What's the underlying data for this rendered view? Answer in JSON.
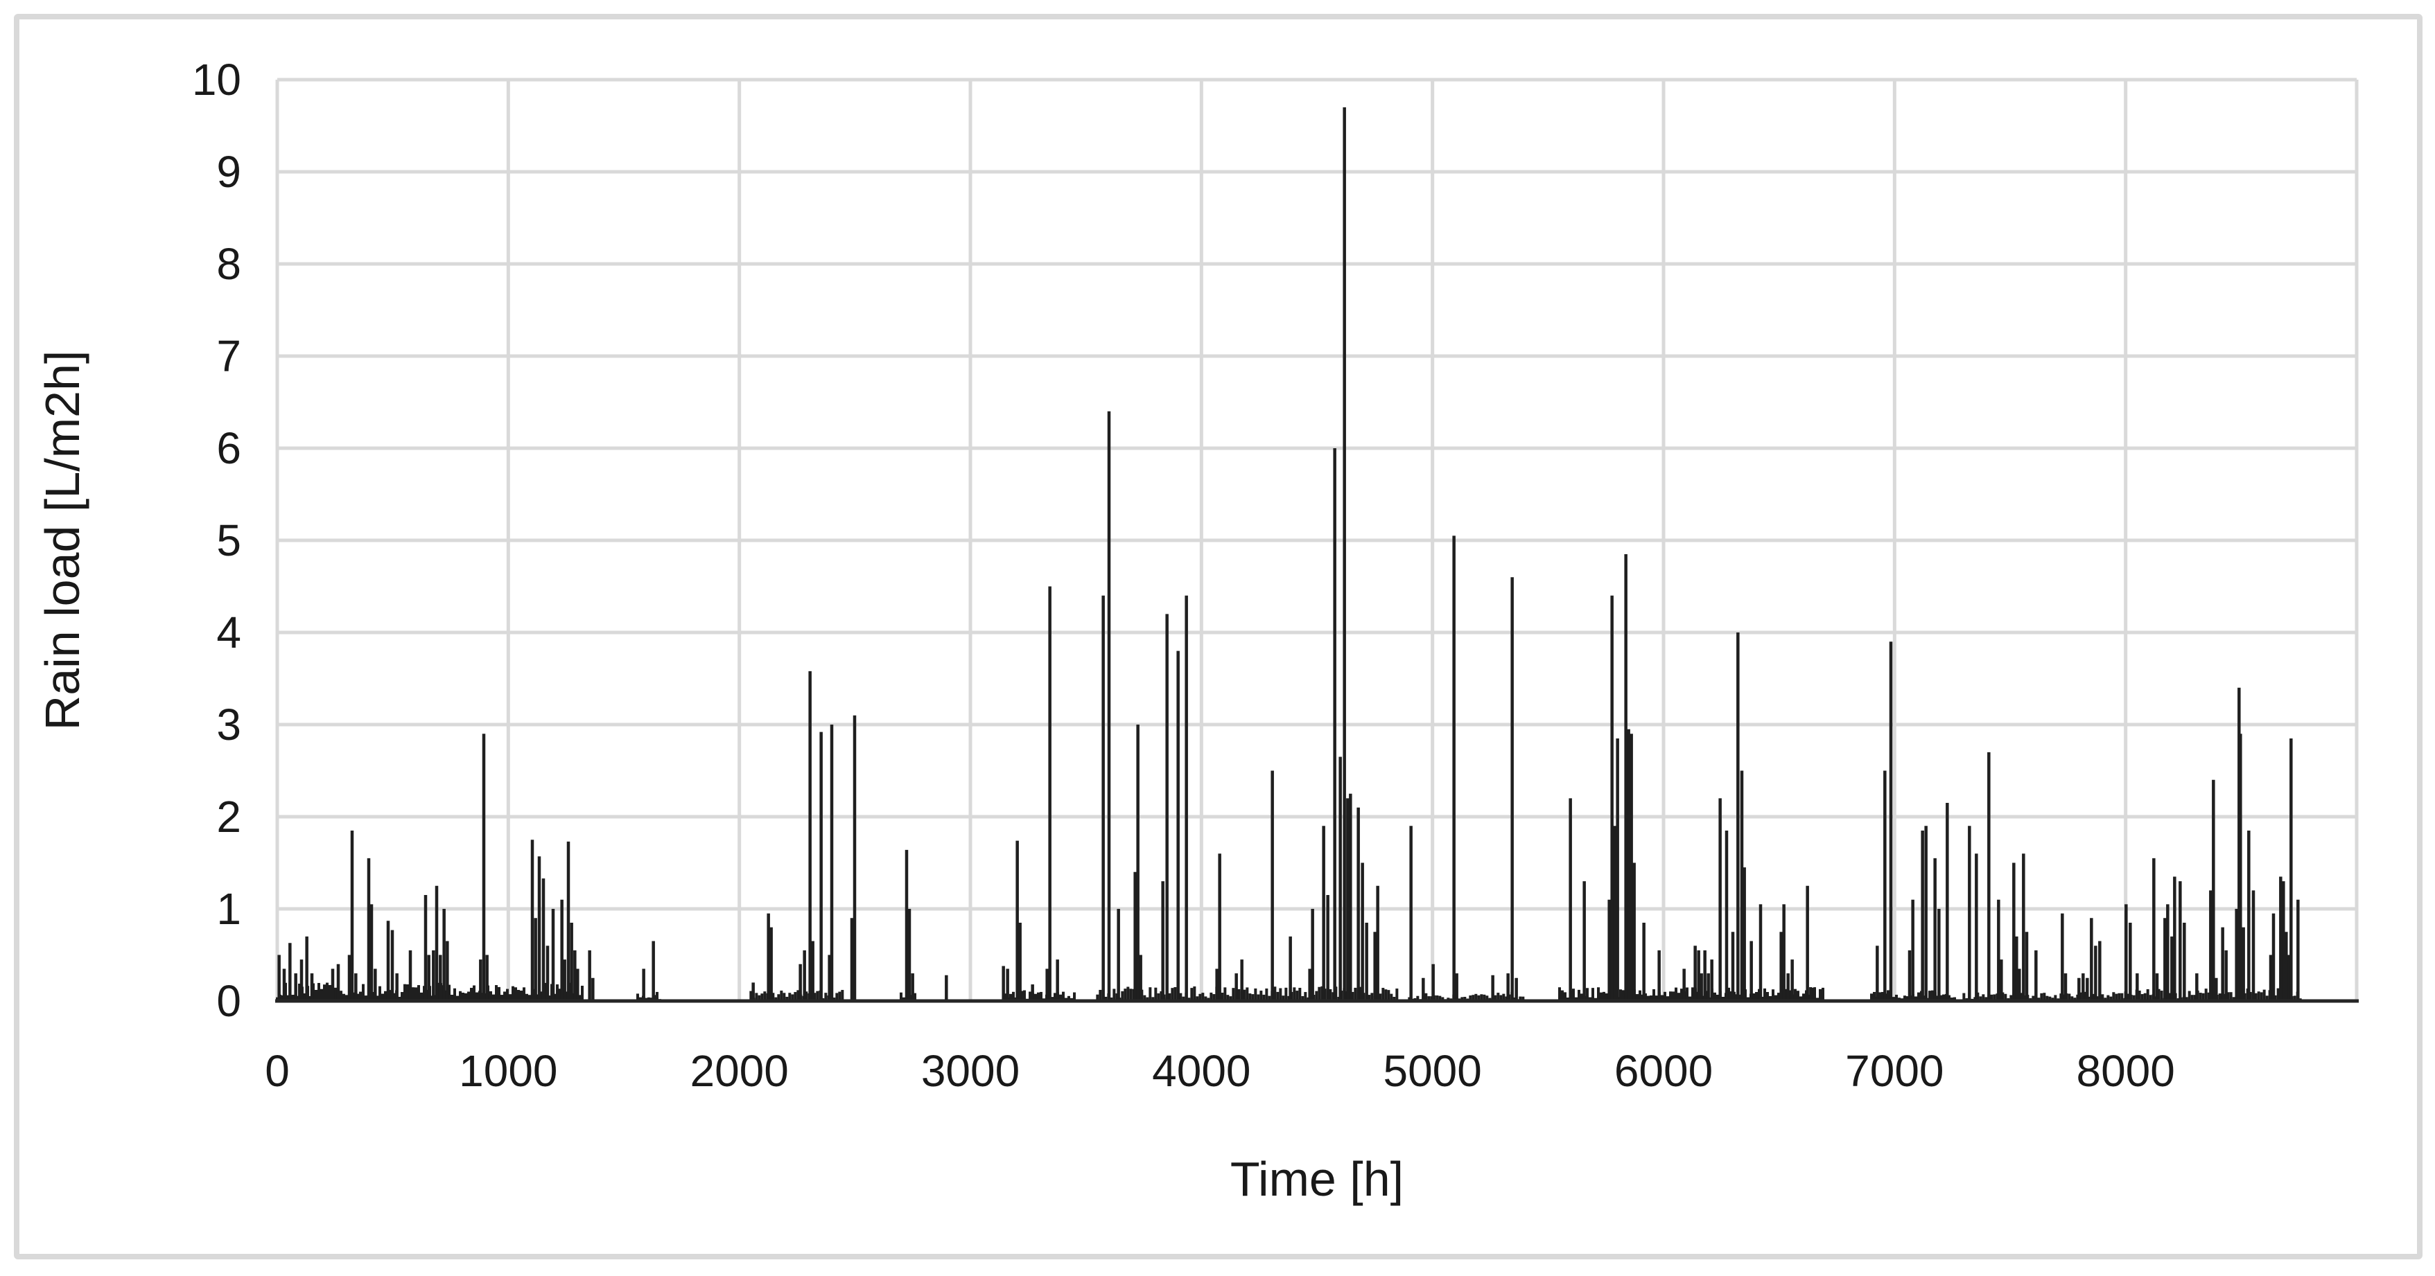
{
  "chart_data": {
    "type": "line",
    "subtype": "hourly-spike-series",
    "title": "",
    "xlabel": "Time [h]",
    "ylabel": "Rain load [L/m2h]",
    "xlim": [
      0,
      9000
    ],
    "ylim": [
      0,
      10
    ],
    "x_ticks": [
      0,
      1000,
      2000,
      3000,
      4000,
      5000,
      6000,
      7000,
      8000
    ],
    "y_ticks": [
      0,
      1,
      2,
      3,
      4,
      5,
      6,
      7,
      8,
      9,
      10
    ],
    "grid": "both",
    "legend": "none",
    "series_name": "Rain load",
    "points": [
      [
        8,
        0.5
      ],
      [
        30,
        0.35
      ],
      [
        55,
        0.63
      ],
      [
        80,
        0.3
      ],
      [
        105,
        0.45
      ],
      [
        128,
        0.7
      ],
      [
        150,
        0.3
      ],
      [
        240,
        0.35
      ],
      [
        264,
        0.4
      ],
      [
        312,
        0.5
      ],
      [
        324,
        1.85
      ],
      [
        340,
        0.3
      ],
      [
        396,
        1.55
      ],
      [
        408,
        1.05
      ],
      [
        424,
        0.35
      ],
      [
        480,
        0.87
      ],
      [
        498,
        0.77
      ],
      [
        518,
        0.3
      ],
      [
        576,
        0.55
      ],
      [
        642,
        1.15
      ],
      [
        656,
        0.5
      ],
      [
        676,
        0.55
      ],
      [
        690,
        1.25
      ],
      [
        706,
        0.5
      ],
      [
        722,
        1.0
      ],
      [
        736,
        0.65
      ],
      [
        880,
        0.45
      ],
      [
        894,
        2.9
      ],
      [
        908,
        0.5
      ],
      [
        1104,
        1.75
      ],
      [
        1118,
        0.9
      ],
      [
        1134,
        1.57
      ],
      [
        1152,
        1.33
      ],
      [
        1170,
        0.6
      ],
      [
        1194,
        1.0
      ],
      [
        1232,
        1.1
      ],
      [
        1244,
        0.45
      ],
      [
        1260,
        1.73
      ],
      [
        1274,
        0.85
      ],
      [
        1288,
        0.55
      ],
      [
        1300,
        0.35
      ],
      [
        1352,
        0.55
      ],
      [
        1366,
        0.25
      ],
      [
        1586,
        0.35
      ],
      [
        1628,
        0.65
      ],
      [
        2060,
        0.2
      ],
      [
        2126,
        0.95
      ],
      [
        2138,
        0.8
      ],
      [
        2264,
        0.4
      ],
      [
        2282,
        0.55
      ],
      [
        2306,
        3.58
      ],
      [
        2318,
        0.65
      ],
      [
        2354,
        2.92
      ],
      [
        2390,
        0.5
      ],
      [
        2400,
        3.0
      ],
      [
        2487,
        0.9
      ],
      [
        2499,
        3.1
      ],
      [
        2724,
        1.64
      ],
      [
        2736,
        1.0
      ],
      [
        2750,
        0.3
      ],
      [
        2896,
        0.28
      ],
      [
        3143,
        0.38
      ],
      [
        3161,
        0.35
      ],
      [
        3203,
        1.74
      ],
      [
        3215,
        0.85
      ],
      [
        3269,
        0.18
      ],
      [
        3332,
        0.35
      ],
      [
        3344,
        4.5
      ],
      [
        3377,
        0.45
      ],
      [
        3575,
        4.4
      ],
      [
        3600,
        6.4
      ],
      [
        3641,
        1.0
      ],
      [
        3713,
        1.4
      ],
      [
        3725,
        3.0
      ],
      [
        3737,
        0.5
      ],
      [
        3833,
        1.3
      ],
      [
        3851,
        4.2
      ],
      [
        3899,
        3.8
      ],
      [
        3935,
        4.4
      ],
      [
        4067,
        0.35
      ],
      [
        4079,
        1.6
      ],
      [
        4151,
        0.3
      ],
      [
        4175,
        0.45
      ],
      [
        4307,
        2.5
      ],
      [
        4385,
        0.7
      ],
      [
        4469,
        0.35
      ],
      [
        4481,
        1.0
      ],
      [
        4529,
        1.9
      ],
      [
        4547,
        1.15
      ],
      [
        4577,
        6.0
      ],
      [
        4601,
        2.65
      ],
      [
        4619,
        9.7
      ],
      [
        4633,
        2.2
      ],
      [
        4645,
        2.25
      ],
      [
        4679,
        2.1
      ],
      [
        4697,
        1.5
      ],
      [
        4715,
        0.85
      ],
      [
        4751,
        0.75
      ],
      [
        4763,
        1.25
      ],
      [
        4907,
        1.9
      ],
      [
        4960,
        0.25
      ],
      [
        5003,
        0.4
      ],
      [
        5093,
        5.05
      ],
      [
        5105,
        0.3
      ],
      [
        5261,
        0.28
      ],
      [
        5327,
        0.3
      ],
      [
        5345,
        4.6
      ],
      [
        5363,
        0.25
      ],
      [
        5597,
        2.2
      ],
      [
        5657,
        1.3
      ],
      [
        5765,
        1.1
      ],
      [
        5777,
        4.4
      ],
      [
        5789,
        1.9
      ],
      [
        5801,
        2.85
      ],
      [
        5837,
        4.85
      ],
      [
        5849,
        2.95
      ],
      [
        5861,
        2.9
      ],
      [
        5873,
        1.5
      ],
      [
        5915,
        0.85
      ],
      [
        5981,
        0.55
      ],
      [
        6089,
        0.35
      ],
      [
        6137,
        0.6
      ],
      [
        6152,
        0.55
      ],
      [
        6164,
        0.3
      ],
      [
        6179,
        0.55
      ],
      [
        6194,
        0.3
      ],
      [
        6209,
        0.45
      ],
      [
        6245,
        2.2
      ],
      [
        6273,
        1.85
      ],
      [
        6300,
        0.75
      ],
      [
        6322,
        4.0
      ],
      [
        6339,
        2.5
      ],
      [
        6350,
        1.45
      ],
      [
        6380,
        0.65
      ],
      [
        6420,
        1.05
      ],
      [
        6509,
        0.75
      ],
      [
        6521,
        1.05
      ],
      [
        6539,
        0.3
      ],
      [
        6557,
        0.45
      ],
      [
        6623,
        1.25
      ],
      [
        6637,
        0.15
      ],
      [
        6925,
        0.6
      ],
      [
        6958,
        2.5
      ],
      [
        6984,
        3.9
      ],
      [
        7065,
        0.55
      ],
      [
        7079,
        1.1
      ],
      [
        7121,
        1.85
      ],
      [
        7136,
        1.9
      ],
      [
        7175,
        1.55
      ],
      [
        7192,
        1.0
      ],
      [
        7228,
        2.15
      ],
      [
        7324,
        1.9
      ],
      [
        7354,
        1.6
      ],
      [
        7408,
        2.7
      ],
      [
        7450,
        1.1
      ],
      [
        7462,
        0.45
      ],
      [
        7516,
        1.5
      ],
      [
        7528,
        0.7
      ],
      [
        7540,
        0.35
      ],
      [
        7558,
        1.6
      ],
      [
        7572,
        0.75
      ],
      [
        7612,
        0.55
      ],
      [
        7726,
        0.95
      ],
      [
        7740,
        0.3
      ],
      [
        7798,
        0.25
      ],
      [
        7816,
        0.3
      ],
      [
        7834,
        0.25
      ],
      [
        7852,
        0.9
      ],
      [
        7870,
        0.6
      ],
      [
        7888,
        0.65
      ],
      [
        8002,
        1.05
      ],
      [
        8020,
        0.85
      ],
      [
        8050,
        0.3
      ],
      [
        8122,
        1.55
      ],
      [
        8136,
        0.3
      ],
      [
        8170,
        0.9
      ],
      [
        8182,
        1.05
      ],
      [
        8200,
        0.7
      ],
      [
        8212,
        1.35
      ],
      [
        8236,
        1.3
      ],
      [
        8254,
        0.85
      ],
      [
        8308,
        0.3
      ],
      [
        8368,
        1.2
      ],
      [
        8380,
        2.4
      ],
      [
        8392,
        0.25
      ],
      [
        8420,
        0.8
      ],
      [
        8435,
        0.55
      ],
      [
        8480,
        1.0
      ],
      [
        8491,
        3.4
      ],
      [
        8497,
        2.9
      ],
      [
        8510,
        0.8
      ],
      [
        8533,
        1.85
      ],
      [
        8553,
        1.2
      ],
      [
        8628,
        0.5
      ],
      [
        8640,
        0.95
      ],
      [
        8671,
        1.35
      ],
      [
        8683,
        1.3
      ],
      [
        8695,
        0.75
      ],
      [
        8707,
        0.5
      ],
      [
        8716,
        2.85
      ],
      [
        8746,
        1.1
      ]
    ],
    "baseline_noise_regions": [
      {
        "from": 0,
        "to": 1320,
        "amp": 0.2
      },
      {
        "from": 1560,
        "to": 1660,
        "amp": 0.1
      },
      {
        "from": 2050,
        "to": 2450,
        "amp": 0.12
      },
      {
        "from": 2700,
        "to": 2760,
        "amp": 0.1
      },
      {
        "from": 3150,
        "to": 3450,
        "amp": 0.12
      },
      {
        "from": 3550,
        "to": 4850,
        "amp": 0.16
      },
      {
        "from": 4900,
        "to": 5400,
        "amp": 0.1
      },
      {
        "from": 5550,
        "to": 6700,
        "amp": 0.15
      },
      {
        "from": 6900,
        "to": 7260,
        "amp": 0.12
      },
      {
        "from": 7300,
        "to": 8000,
        "amp": 0.1
      },
      {
        "from": 8000,
        "to": 8760,
        "amp": 0.14
      }
    ]
  },
  "style": {
    "spike_color": "#1f1f1f",
    "grid_color": "#d9d9d9",
    "axis_line_color": "#262626",
    "text_color": "#191919",
    "frame_border_color": "#d9d9d9",
    "background": "#ffffff"
  }
}
